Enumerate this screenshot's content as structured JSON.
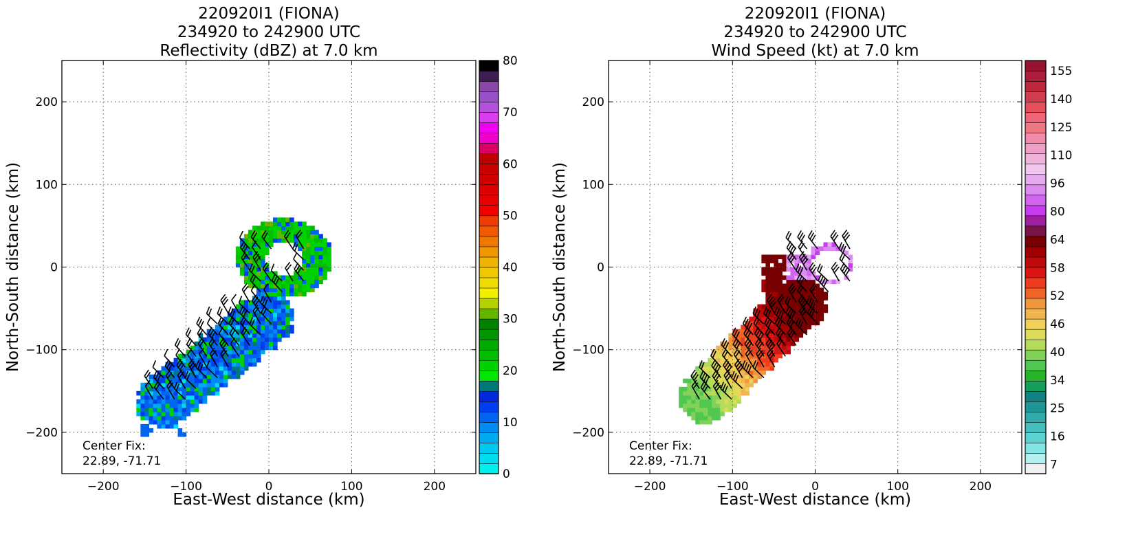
{
  "chart_data": [
    {
      "type": "heatmap",
      "title": [
        "220920I1 (FIONA)",
        "234920 to 242900 UTC",
        "Reflectivity (dBZ) at 7.0 km"
      ],
      "xlabel": "East-West distance (km)",
      "ylabel": "North-South distance (km)",
      "xlim": [
        -250,
        250
      ],
      "ylim": [
        -250,
        250
      ],
      "xticks": [
        -200,
        -100,
        0,
        100,
        200
      ],
      "yticks": [
        -200,
        -100,
        0,
        100,
        200
      ],
      "xtick_labels": [
        "−200",
        "−100",
        "0",
        "100",
        "200"
      ],
      "ytick_labels": [
        "−200",
        "−100",
        "0",
        "100",
        "200"
      ],
      "grid": true,
      "annotation": [
        "Center Fix:",
        "22.89, -71.71"
      ],
      "colorbar": {
        "range": [
          0,
          80
        ],
        "ticks": [
          0,
          10,
          20,
          30,
          40,
          50,
          60,
          70,
          80
        ],
        "tick_labels": [
          "0",
          "10",
          "20",
          "30",
          "40",
          "50",
          "60",
          "70",
          "80"
        ],
        "colors": [
          "#00f0f0",
          "#00dcf0",
          "#00c8f0",
          "#00aaf0",
          "#008cf0",
          "#0064f0",
          "#003cf0",
          "#0028dc",
          "#007878",
          "#00e600",
          "#00d200",
          "#00be00",
          "#00aa00",
          "#009600",
          "#008200",
          "#64b400",
          "#b4d200",
          "#f0f000",
          "#f0dc00",
          "#f0c800",
          "#f0b400",
          "#f09600",
          "#f07800",
          "#f05a00",
          "#f03c00",
          "#f00000",
          "#e60000",
          "#dc0000",
          "#d20000",
          "#c80000",
          "#be0000",
          "#dc0064",
          "#f000c8",
          "#f000f0",
          "#dc3cf0",
          "#b450dc",
          "#9650c8",
          "#8c46aa",
          "#3c1e50",
          "#000000"
        ]
      },
      "field": {
        "eye_center": [
          16,
          8
        ],
        "eye_radii": [
          22,
          20
        ],
        "ring_radii": [
          58,
          48
        ],
        "band_from": [
          -130,
          -165
        ],
        "band_to": [
          -5,
          -65
        ],
        "band_halfwidth": 32,
        "ring_color_weights": {
          "#00d200": 6,
          "#00be00": 3,
          "#0064f0": 2,
          "#003cf0": 1,
          "#64b400": 1
        },
        "band_color_weights": {
          "#0064f0": 5,
          "#003cf0": 3,
          "#008cf0": 2,
          "#00aaf0": 1,
          "#00dcf0": 1,
          "#00d200": 2,
          "#007878": 1
        }
      },
      "wind_barbs": {
        "color": "#000000",
        "flags": [
          1,
          2,
          2,
          3
        ]
      }
    },
    {
      "type": "heatmap",
      "title": [
        "220920I1 (FIONA)",
        "234920 to 242900 UTC",
        "Wind Speed (kt) at 7.0 km"
      ],
      "xlabel": "East-West distance (km)",
      "ylabel": "North-South distance (km)",
      "xlim": [
        -250,
        250
      ],
      "ylim": [
        -250,
        250
      ],
      "xticks": [
        -200,
        -100,
        0,
        100,
        200
      ],
      "yticks": [
        -200,
        -100,
        0,
        100,
        200
      ],
      "xtick_labels": [
        "−200",
        "−100",
        "0",
        "100",
        "200"
      ],
      "ytick_labels": [
        "−200",
        "−100",
        "0",
        "100",
        "200"
      ],
      "grid": true,
      "annotation": [
        "Center Fix:",
        "22.89, -71.71"
      ],
      "colorbar": {
        "ticks": [
          7,
          16,
          25,
          34,
          40,
          46,
          52,
          58,
          64,
          80,
          96,
          110,
          125,
          140,
          155
        ],
        "tick_labels": [
          "7",
          "16",
          "25",
          "34",
          "40",
          "46",
          "52",
          "58",
          "64",
          "80",
          "96",
          "110",
          "125",
          "140",
          "155"
        ],
        "colors": [
          "#f0f0f0",
          "#b4f0f0",
          "#82e6e6",
          "#5ad2d2",
          "#46bebe",
          "#32aaaa",
          "#1e9696",
          "#148282",
          "#14a05a",
          "#28b428",
          "#50c850",
          "#82d25a",
          "#b4dc5a",
          "#dcdc5a",
          "#f0d25a",
          "#f0b450",
          "#f0963c",
          "#f06428",
          "#f03c1e",
          "#dc1414",
          "#be0a0a",
          "#a00000",
          "#780000",
          "#781446",
          "#a01ea0",
          "#c83cf0",
          "#d264f0",
          "#dc8cf0",
          "#e6aaf0",
          "#f0c8f0",
          "#f0b4dc",
          "#f0a0c8",
          "#f08caa",
          "#f07882",
          "#f06478",
          "#e6505a",
          "#d23c50",
          "#be283c",
          "#aa1e3c",
          "#961432"
        ]
      },
      "field": {
        "eye_center": [
          16,
          0
        ],
        "eye_radii": [
          22,
          20
        ]
      },
      "wind_barbs": {
        "color": "#000000",
        "flags": [
          2,
          3,
          3,
          4
        ]
      }
    }
  ]
}
